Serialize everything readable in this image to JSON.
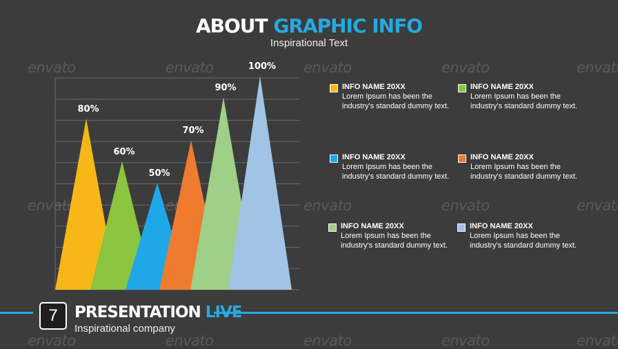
{
  "header": {
    "title_part1": "ABOUT",
    "title_part2": "GRAPHIC INFO",
    "subtitle": "Inspirational Text"
  },
  "chart_data": {
    "type": "bar",
    "shape": "triangle",
    "title": "",
    "xlabel": "",
    "ylabel": "",
    "ylim": [
      0,
      100
    ],
    "grid": true,
    "categories": [
      "",
      "",
      "",
      "",
      "",
      ""
    ],
    "values": [
      80,
      60,
      50,
      70,
      90,
      100
    ],
    "data_labels": [
      "80%",
      "60%",
      "50%",
      "70%",
      "90%",
      "100%"
    ],
    "colors": [
      "#f7b718",
      "#8cc540",
      "#20a7e8",
      "#ee7b2f",
      "#9fcf88",
      "#a0c3e6"
    ],
    "gridline_count": 11
  },
  "legend": {
    "items": [
      {
        "name": "INFO NAME 20XX",
        "desc": "Lorem Ipsum has been the industry's standard dummy text.",
        "color": "#f7b718"
      },
      {
        "name": "INFO NAME 20XX",
        "desc": "Lorem Ipsum has been the industry's standard dummy text.",
        "color": "#8cc540"
      },
      {
        "name": "INFO NAME 20XX",
        "desc": "Lorem Ipsum has been the industry's standard dummy text.",
        "color": "#20a7e8"
      },
      {
        "name": "INFO NAME 20XX",
        "desc": "Lorem Ipsum has been the industry's standard dummy text.",
        "color": "#ee7b2f"
      },
      {
        "name": "INFO NAME 20XX",
        "desc": "Lorem Ipsum has been the industry's standard dummy text.",
        "color": "#9fcf88"
      },
      {
        "name": "INFO NAME 20XX",
        "desc": "Lorem Ipsum has been the industry's standard dummy text.",
        "color": "#a0c3e6"
      }
    ]
  },
  "footer": {
    "page_number": "7",
    "brand_part1": "PRESENTATION",
    "brand_part2": "LIVE",
    "company": "Inspirational company"
  },
  "watermark_text": "envato",
  "colors": {
    "background": "#3c3c3c",
    "accent": "#26a9e0"
  }
}
